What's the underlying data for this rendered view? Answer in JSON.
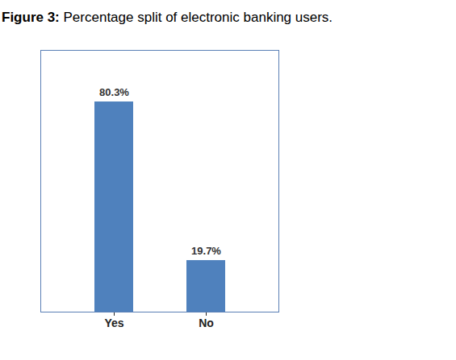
{
  "chart_data": {
    "type": "bar",
    "title": "Figure 3: Percentage split of electronic banking users.",
    "categories": [
      "Yes",
      "No"
    ],
    "values": [
      80.3,
      19.7
    ],
    "value_labels": [
      "80.3%",
      "19.7%"
    ],
    "color": "#4f81bd",
    "ylim": [
      0,
      100
    ],
    "data_labels": true,
    "tick_labels": "x"
  }
}
